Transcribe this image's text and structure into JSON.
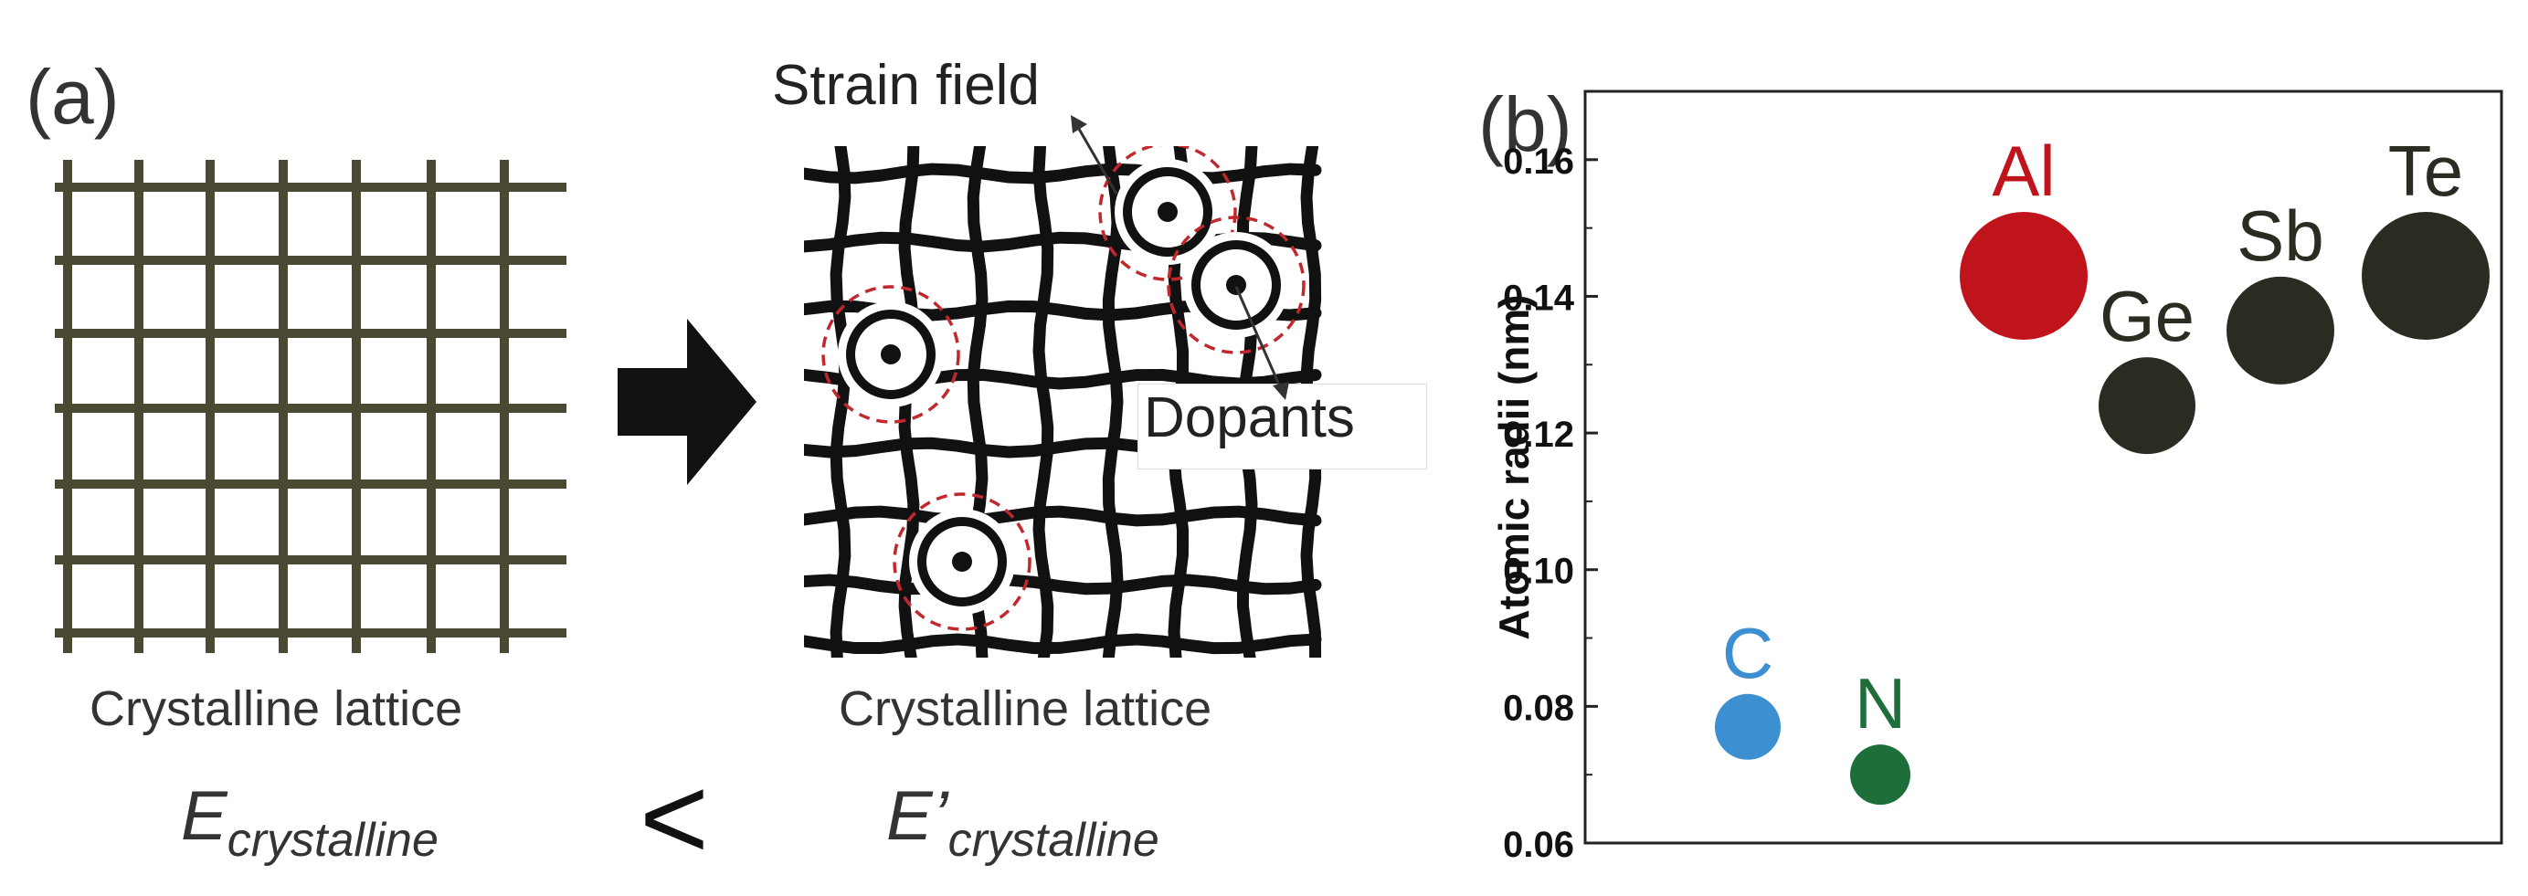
{
  "panel_a": {
    "label": "(a)",
    "caption_left": "Crystalline lattice",
    "caption_right": "Crystalline lattice",
    "energy_left_main": "E",
    "energy_left_sub": "crystalline",
    "energy_right_main": "E’",
    "energy_right_sub": "crystalline",
    "comparison": "<",
    "annotation_strain": "Strain field",
    "annotation_dopants": "Dopants",
    "lattice_color": "#4a4a32",
    "strain_circle_color": "#c0282d",
    "arrow_icon": "right-arrow-icon"
  },
  "panel_b": {
    "label": "(b)",
    "chart_data": {
      "type": "scatter",
      "ylabel": "Atomic radii (nm)",
      "xlabel": "",
      "ylim": [
        0.06,
        0.17
      ],
      "yticks": [
        "0.06",
        "0.08",
        "0.10",
        "0.12",
        "0.14",
        "0.16"
      ],
      "grid": false,
      "points": [
        {
          "label": "C",
          "y": 0.077,
          "color": "#3c8fd0"
        },
        {
          "label": "N",
          "y": 0.07,
          "color": "#1e6e3a"
        },
        {
          "label": "Al",
          "y": 0.143,
          "color": "#c0141c"
        },
        {
          "label": "Ge",
          "y": 0.124,
          "color": "#2b2b22"
        },
        {
          "label": "Sb",
          "y": 0.135,
          "color": "#2b2b22"
        },
        {
          "label": "Te",
          "y": 0.143,
          "color": "#2b2b22"
        }
      ]
    }
  }
}
